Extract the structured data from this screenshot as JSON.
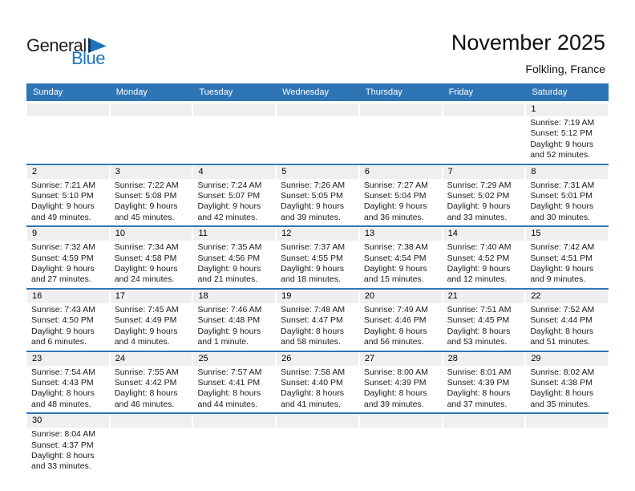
{
  "logo": {
    "line1": "General",
    "line2": "Blue",
    "triangle_icon": "blue-sail-triangle"
  },
  "header": {
    "title": "November 2025",
    "subtitle": "Folkling, France"
  },
  "colors": {
    "header_blue": "#2E75B6",
    "week_separator_blue": "#2E75B6",
    "day_band_gray": "#EFEFEF",
    "logo_blue": "#1C75BC",
    "logo_dark": "#231F20"
  },
  "calendar": {
    "weekday_headers": [
      "Sunday",
      "Monday",
      "Tuesday",
      "Wednesday",
      "Thursday",
      "Friday",
      "Saturday"
    ],
    "weeks": [
      [
        null,
        null,
        null,
        null,
        null,
        null,
        {
          "day": "1",
          "lines": [
            "Sunrise: 7:19 AM",
            "Sunset: 5:12 PM",
            "Daylight: 9 hours",
            "and 52 minutes."
          ]
        }
      ],
      [
        {
          "day": "2",
          "lines": [
            "Sunrise: 7:21 AM",
            "Sunset: 5:10 PM",
            "Daylight: 9 hours",
            "and 49 minutes."
          ]
        },
        {
          "day": "3",
          "lines": [
            "Sunrise: 7:22 AM",
            "Sunset: 5:08 PM",
            "Daylight: 9 hours",
            "and 45 minutes."
          ]
        },
        {
          "day": "4",
          "lines": [
            "Sunrise: 7:24 AM",
            "Sunset: 5:07 PM",
            "Daylight: 9 hours",
            "and 42 minutes."
          ]
        },
        {
          "day": "5",
          "lines": [
            "Sunrise: 7:26 AM",
            "Sunset: 5:05 PM",
            "Daylight: 9 hours",
            "and 39 minutes."
          ]
        },
        {
          "day": "6",
          "lines": [
            "Sunrise: 7:27 AM",
            "Sunset: 5:04 PM",
            "Daylight: 9 hours",
            "and 36 minutes."
          ]
        },
        {
          "day": "7",
          "lines": [
            "Sunrise: 7:29 AM",
            "Sunset: 5:02 PM",
            "Daylight: 9 hours",
            "and 33 minutes."
          ]
        },
        {
          "day": "8",
          "lines": [
            "Sunrise: 7:31 AM",
            "Sunset: 5:01 PM",
            "Daylight: 9 hours",
            "and 30 minutes."
          ]
        }
      ],
      [
        {
          "day": "9",
          "lines": [
            "Sunrise: 7:32 AM",
            "Sunset: 4:59 PM",
            "Daylight: 9 hours",
            "and 27 minutes."
          ]
        },
        {
          "day": "10",
          "lines": [
            "Sunrise: 7:34 AM",
            "Sunset: 4:58 PM",
            "Daylight: 9 hours",
            "and 24 minutes."
          ]
        },
        {
          "day": "11",
          "lines": [
            "Sunrise: 7:35 AM",
            "Sunset: 4:56 PM",
            "Daylight: 9 hours",
            "and 21 minutes."
          ]
        },
        {
          "day": "12",
          "lines": [
            "Sunrise: 7:37 AM",
            "Sunset: 4:55 PM",
            "Daylight: 9 hours",
            "and 18 minutes."
          ]
        },
        {
          "day": "13",
          "lines": [
            "Sunrise: 7:38 AM",
            "Sunset: 4:54 PM",
            "Daylight: 9 hours",
            "and 15 minutes."
          ]
        },
        {
          "day": "14",
          "lines": [
            "Sunrise: 7:40 AM",
            "Sunset: 4:52 PM",
            "Daylight: 9 hours",
            "and 12 minutes."
          ]
        },
        {
          "day": "15",
          "lines": [
            "Sunrise: 7:42 AM",
            "Sunset: 4:51 PM",
            "Daylight: 9 hours",
            "and 9 minutes."
          ]
        }
      ],
      [
        {
          "day": "16",
          "lines": [
            "Sunrise: 7:43 AM",
            "Sunset: 4:50 PM",
            "Daylight: 9 hours",
            "and 6 minutes."
          ]
        },
        {
          "day": "17",
          "lines": [
            "Sunrise: 7:45 AM",
            "Sunset: 4:49 PM",
            "Daylight: 9 hours",
            "and 4 minutes."
          ]
        },
        {
          "day": "18",
          "lines": [
            "Sunrise: 7:46 AM",
            "Sunset: 4:48 PM",
            "Daylight: 9 hours",
            "and 1 minute."
          ]
        },
        {
          "day": "19",
          "lines": [
            "Sunrise: 7:48 AM",
            "Sunset: 4:47 PM",
            "Daylight: 8 hours",
            "and 58 minutes."
          ]
        },
        {
          "day": "20",
          "lines": [
            "Sunrise: 7:49 AM",
            "Sunset: 4:46 PM",
            "Daylight: 8 hours",
            "and 56 minutes."
          ]
        },
        {
          "day": "21",
          "lines": [
            "Sunrise: 7:51 AM",
            "Sunset: 4:45 PM",
            "Daylight: 8 hours",
            "and 53 minutes."
          ]
        },
        {
          "day": "22",
          "lines": [
            "Sunrise: 7:52 AM",
            "Sunset: 4:44 PM",
            "Daylight: 8 hours",
            "and 51 minutes."
          ]
        }
      ],
      [
        {
          "day": "23",
          "lines": [
            "Sunrise: 7:54 AM",
            "Sunset: 4:43 PM",
            "Daylight: 8 hours",
            "and 48 minutes."
          ]
        },
        {
          "day": "24",
          "lines": [
            "Sunrise: 7:55 AM",
            "Sunset: 4:42 PM",
            "Daylight: 8 hours",
            "and 46 minutes."
          ]
        },
        {
          "day": "25",
          "lines": [
            "Sunrise: 7:57 AM",
            "Sunset: 4:41 PM",
            "Daylight: 8 hours",
            "and 44 minutes."
          ]
        },
        {
          "day": "26",
          "lines": [
            "Sunrise: 7:58 AM",
            "Sunset: 4:40 PM",
            "Daylight: 8 hours",
            "and 41 minutes."
          ]
        },
        {
          "day": "27",
          "lines": [
            "Sunrise: 8:00 AM",
            "Sunset: 4:39 PM",
            "Daylight: 8 hours",
            "and 39 minutes."
          ]
        },
        {
          "day": "28",
          "lines": [
            "Sunrise: 8:01 AM",
            "Sunset: 4:39 PM",
            "Daylight: 8 hours",
            "and 37 minutes."
          ]
        },
        {
          "day": "29",
          "lines": [
            "Sunrise: 8:02 AM",
            "Sunset: 4:38 PM",
            "Daylight: 8 hours",
            "and 35 minutes."
          ]
        }
      ],
      [
        {
          "day": "30",
          "lines": [
            "Sunrise: 8:04 AM",
            "Sunset: 4:37 PM",
            "Daylight: 8 hours",
            "and 33 minutes."
          ]
        },
        null,
        null,
        null,
        null,
        null,
        null
      ]
    ]
  }
}
